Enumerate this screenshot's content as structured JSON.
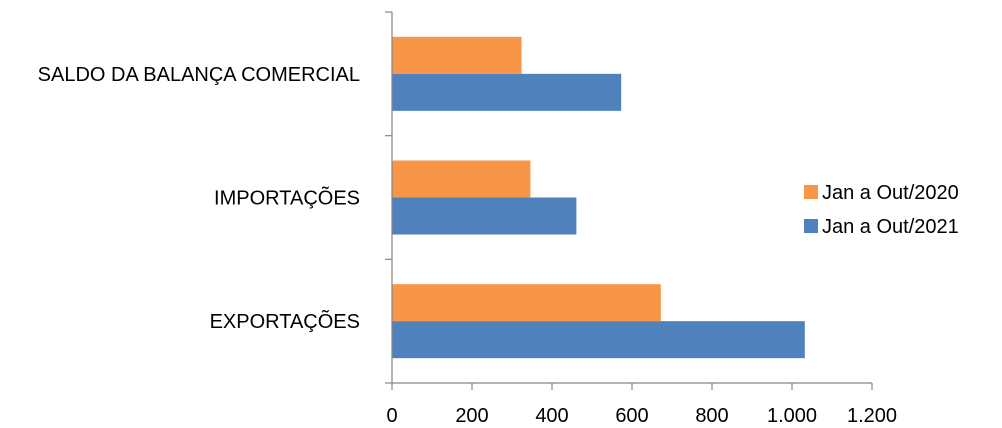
{
  "chart_data": {
    "type": "bar",
    "orientation": "horizontal",
    "categories": [
      "SALDO DA BALANÇA COMERCIAL",
      "IMPORTAÇÕES",
      "EXPORTAÇÕES"
    ],
    "series": [
      {
        "name": "Jan a Out/2020",
        "color": "#F79646",
        "values": [
          324,
          346,
          672
        ]
      },
      {
        "name": "Jan a Out/2021",
        "color": "#4F81BD",
        "values": [
          573,
          461,
          1032
        ]
      }
    ],
    "xlim": [
      0,
      1200
    ],
    "xticks": [
      0,
      200,
      400,
      600,
      800,
      1000,
      1200
    ],
    "xtick_labels": [
      "0",
      "200",
      "400",
      "600",
      "800",
      "1.000",
      "1.200"
    ],
    "grid": false,
    "legend_position": "right"
  }
}
